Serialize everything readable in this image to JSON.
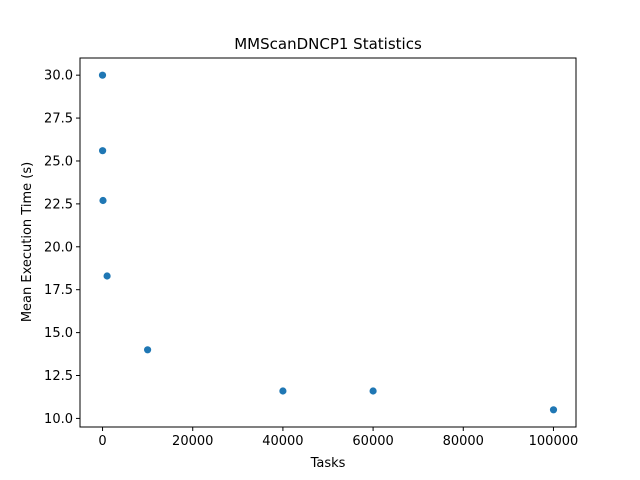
{
  "chart_data": {
    "type": "scatter",
    "title": "MMScanDNCP1 Statistics",
    "xlabel": "Tasks",
    "ylabel": "Mean Execution Time (s)",
    "xlim": [
      -5000,
      105000
    ],
    "ylim": [
      9.5,
      31.0
    ],
    "xticks": [
      0,
      20000,
      40000,
      60000,
      80000,
      100000
    ],
    "xtick_labels": [
      "0",
      "20000",
      "40000",
      "60000",
      "80000",
      "100000"
    ],
    "yticks": [
      10.0,
      12.5,
      15.0,
      17.5,
      20.0,
      22.5,
      25.0,
      27.5,
      30.0
    ],
    "ytick_labels": [
      "10.0",
      "12.5",
      "15.0",
      "17.5",
      "20.0",
      "22.5",
      "25.0",
      "27.5",
      "30.0"
    ],
    "grid": false,
    "marker_color": "#1f77b4",
    "points": [
      {
        "x": 1,
        "y": 30.0
      },
      {
        "x": 10,
        "y": 25.6
      },
      {
        "x": 100,
        "y": 22.7
      },
      {
        "x": 1000,
        "y": 18.3
      },
      {
        "x": 10000,
        "y": 14.0
      },
      {
        "x": 40000,
        "y": 11.6
      },
      {
        "x": 60000,
        "y": 11.6
      },
      {
        "x": 100000,
        "y": 10.5
      }
    ]
  }
}
